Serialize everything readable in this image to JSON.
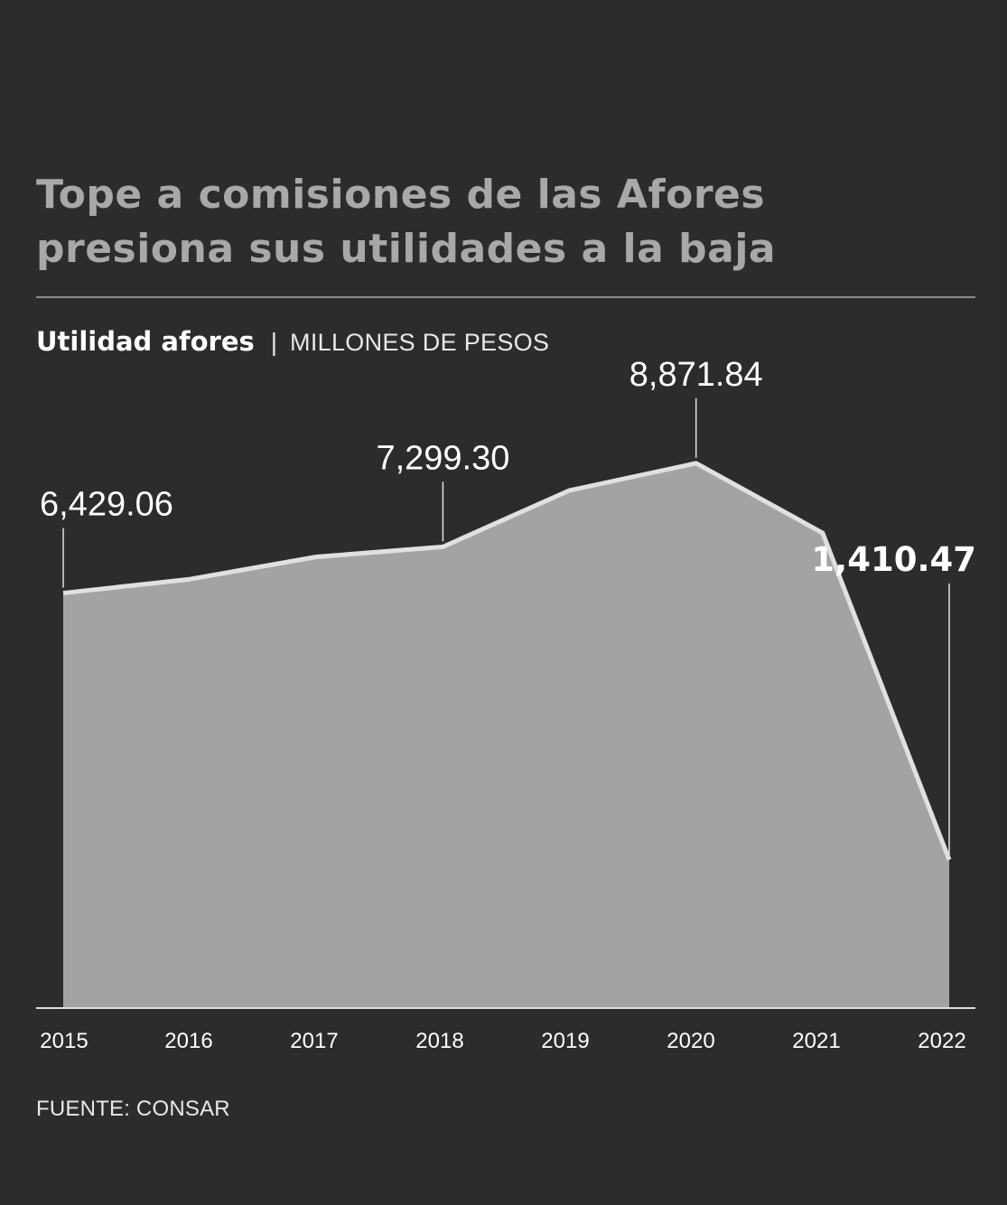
{
  "title_lines": [
    "Tope a comisiones de las Afores",
    "presiona sus utilidades a la baja"
  ],
  "subtitle": {
    "label": "Utilidad afores",
    "separator": "|",
    "unit": "MILLONES DE PESOS"
  },
  "source": "FUENTE: CONSAR",
  "colors": {
    "background": "#2d2c2c",
    "area_fill": "#a3a3a5",
    "line": "#e0e0e0",
    "text": "#ffffff",
    "title": "#a8a8a8"
  },
  "chart_data": {
    "type": "area",
    "categories": [
      "2015",
      "2016",
      "2017",
      "2018",
      "2019",
      "2020",
      "2021",
      "2022"
    ],
    "values": [
      6429.06,
      6690,
      7110,
      7299.3,
      8360,
      8871.84,
      7560,
      1410.47
    ],
    "value_labels": [
      {
        "category": "2015",
        "text": "6,429.06",
        "bold": false
      },
      {
        "category": "2018",
        "text": "7,299.30",
        "bold": false
      },
      {
        "category": "2020",
        "text": "8,871.84",
        "bold": false
      },
      {
        "category": "2022",
        "text": "1,410.47",
        "bold": true
      }
    ],
    "ylim": [
      -1380,
      9600
    ],
    "grid": false
  }
}
